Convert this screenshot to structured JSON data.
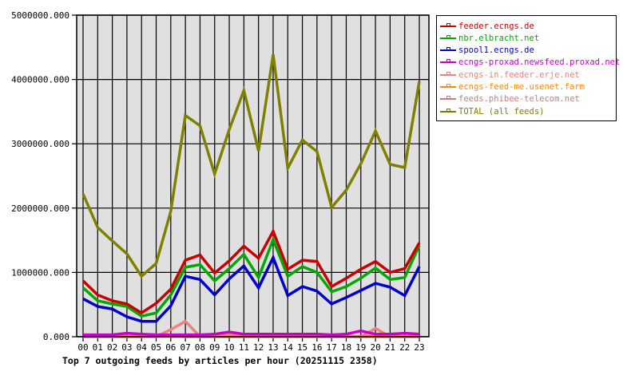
{
  "chart_data": {
    "type": "line",
    "title": "Top 7 outgoing feeds by articles per hour (20251115 2358)",
    "xlabel": "",
    "ylabel": "",
    "ylim": [
      0,
      5000000
    ],
    "yticks": [
      "0.000",
      "1000000.000",
      "2000000.000",
      "3000000.000",
      "4000000.000",
      "5000000.000"
    ],
    "grid": true,
    "legend_position": "right",
    "categories": [
      "00",
      "01",
      "02",
      "03",
      "04",
      "05",
      "06",
      "07",
      "08",
      "09",
      "10",
      "11",
      "12",
      "13",
      "14",
      "15",
      "16",
      "17",
      "18",
      "19",
      "20",
      "21",
      "22",
      "23"
    ],
    "series": [
      {
        "name": "feeder.ecngs.de",
        "color": "#cc0000",
        "values": [
          870000,
          650000,
          560000,
          510000,
          370000,
          520000,
          740000,
          1190000,
          1270000,
          990000,
          1180000,
          1410000,
          1220000,
          1640000,
          1050000,
          1190000,
          1170000,
          780000,
          910000,
          1050000,
          1170000,
          1000000,
          1060000,
          1460000
        ]
      },
      {
        "name": "nbr.elbracht.net",
        "color": "#00aa00",
        "values": [
          760000,
          560000,
          510000,
          470000,
          320000,
          370000,
          650000,
          1080000,
          1120000,
          870000,
          1060000,
          1280000,
          920000,
          1510000,
          940000,
          1090000,
          1000000,
          700000,
          780000,
          910000,
          1070000,
          890000,
          920000,
          1420000
        ]
      },
      {
        "name": "spool1.ecngs.de",
        "color": "#0000cc",
        "values": [
          590000,
          470000,
          430000,
          310000,
          240000,
          240000,
          480000,
          940000,
          890000,
          650000,
          900000,
          1100000,
          760000,
          1230000,
          640000,
          780000,
          710000,
          510000,
          610000,
          720000,
          830000,
          770000,
          640000,
          1090000
        ]
      },
      {
        "name": "ecngs-proxad.newsfeed.proxad.net",
        "color": "#cc00cc",
        "values": [
          30000,
          30000,
          30000,
          55000,
          40000,
          30000,
          30000,
          30000,
          30000,
          40000,
          75000,
          40000,
          40000,
          40000,
          40000,
          40000,
          40000,
          30000,
          40000,
          90000,
          40000,
          40000,
          55000,
          40000
        ]
      },
      {
        "name": "ecngs-in.feeder.erje.net",
        "color": "#f08080",
        "values": [
          0,
          0,
          0,
          0,
          0,
          0,
          110000,
          240000,
          0,
          0,
          30000,
          30000,
          0,
          0,
          0,
          0,
          0,
          0,
          0,
          0,
          130000,
          0,
          0,
          0
        ]
      },
      {
        "name": "ecngs-feed-me.usenet.farm",
        "color": "#ff8800",
        "values": [
          0,
          0,
          0,
          0,
          0,
          10000,
          10000,
          0,
          0,
          0,
          0,
          0,
          0,
          0,
          0,
          0,
          0,
          0,
          0,
          0,
          0,
          0,
          0,
          0
        ]
      },
      {
        "name": "feeds.phibee-telecom.net",
        "color": "#c08080",
        "values": [
          5000,
          5000,
          5000,
          5000,
          5000,
          5000,
          5000,
          5000,
          5000,
          5000,
          5000,
          5000,
          5000,
          5000,
          5000,
          5000,
          5000,
          5000,
          5000,
          5000,
          5000,
          5000,
          5000,
          5000
        ]
      },
      {
        "name": "TOTAL (all feeds)",
        "color": "#808000",
        "values": [
          2220000,
          1700000,
          1490000,
          1290000,
          940000,
          1140000,
          1950000,
          3440000,
          3280000,
          2530000,
          3220000,
          3830000,
          2890000,
          4390000,
          2620000,
          3060000,
          2880000,
          2010000,
          2280000,
          2690000,
          3200000,
          2680000,
          2630000,
          3970000
        ]
      }
    ]
  }
}
